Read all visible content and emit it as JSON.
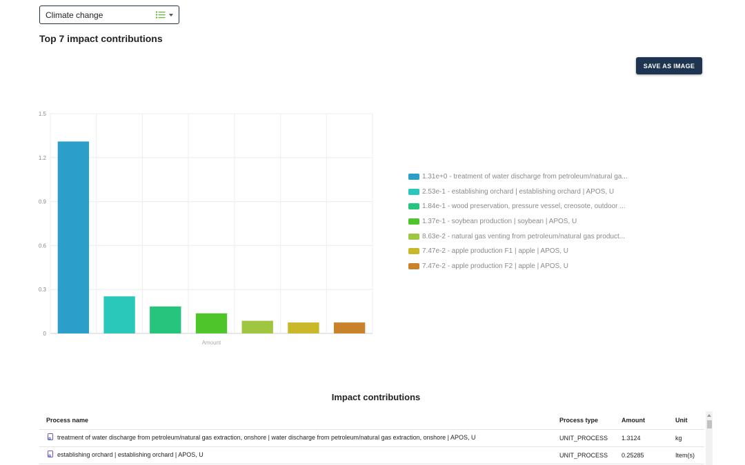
{
  "selector": {
    "value": "Climate change",
    "icon": "list-icon"
  },
  "header": {
    "title": "Top 7 impact contributions"
  },
  "toolbar": {
    "save_label": "SAVE AS IMAGE"
  },
  "chart_data": {
    "type": "bar",
    "xlabel": "Amount",
    "ylabel": "",
    "ylim": [
      0,
      1.5
    ],
    "yticks": [
      "0",
      "0.3",
      "0.6",
      "0.9",
      "1.2",
      "1.5"
    ],
    "grid": true,
    "legend_position": "right",
    "values": [
      1.31,
      0.253,
      0.184,
      0.137,
      0.0863,
      0.0747,
      0.0747
    ],
    "colors": [
      "#2b9ec9",
      "#2ac8bb",
      "#26c47c",
      "#4ec52a",
      "#9ec640",
      "#c9b82a",
      "#c9812a"
    ],
    "legend": [
      "1.31e+0 - treatment of water discharge from petroleum/natural ga...",
      "2.53e-1 - establishing orchard | establishing orchard | APOS, U",
      "1.84e-1 - wood preservation, pressure vessel, creosote, outdoor ...",
      "1.37e-1 - soybean production | soybean | APOS, U",
      "8.63e-2 - natural gas venting from petroleum/natural gas product...",
      "7.47e-2 - apple production F1 | apple | APOS, U",
      "7.47e-2 - apple production F2 | apple | APOS, U"
    ]
  },
  "table": {
    "title": "Impact contributions",
    "columns": {
      "name": "Process name",
      "type": "Process type",
      "amount": "Amount",
      "unit": "Unit"
    },
    "rows": [
      {
        "name": "treatment of water discharge from petroleum/natural gas extraction, onshore | water discharge from petroleum/natural gas extraction, onshore | APOS, U",
        "type": "UNIT_PROCESS",
        "amount": "1.3124",
        "unit": "kg"
      },
      {
        "name": "establishing orchard | establishing orchard | APOS, U",
        "type": "UNIT_PROCESS",
        "amount": "0.25285",
        "unit": "Item(s)"
      }
    ]
  }
}
